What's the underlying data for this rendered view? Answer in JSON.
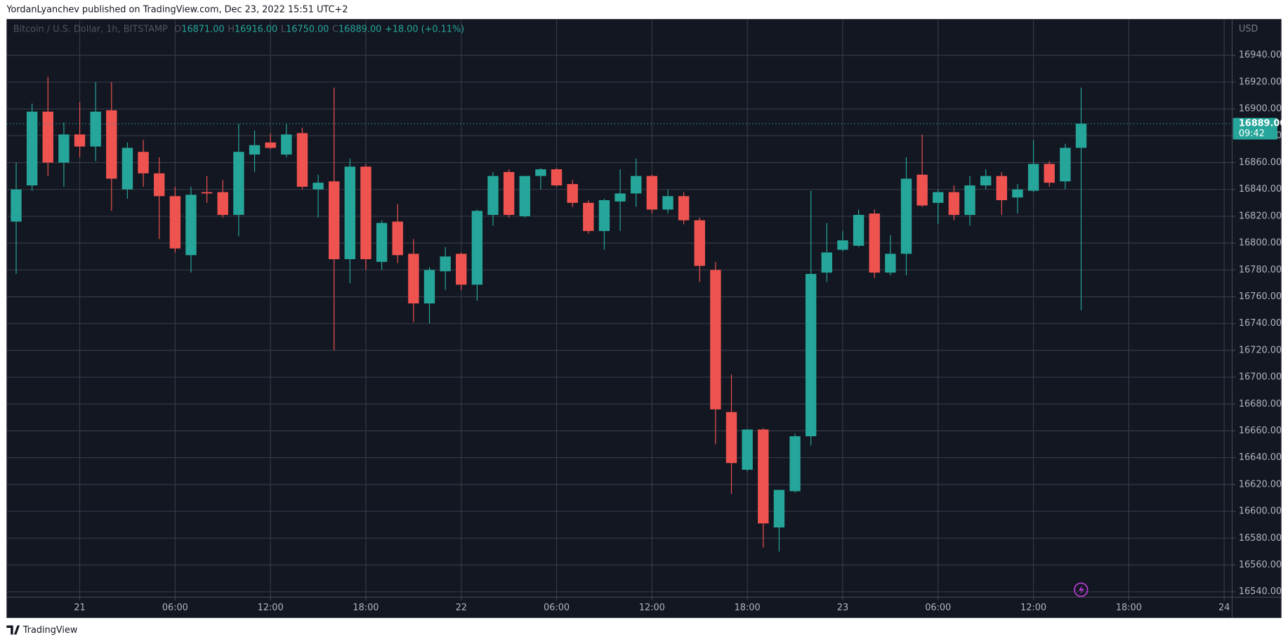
{
  "header": "YordanLyanchev published on TradingView.com, Dec 23, 2022 15:51 UTC+2",
  "footer": "TradingView",
  "chart_data": {
    "type": "candlestick",
    "currency": "USD",
    "up_color": "#26a69a",
    "down_color": "#ef5350",
    "grid": true,
    "legend": {
      "symbol": "Bitcoin / U.S. Dollar, 1h, BITSTAMP",
      "fields": [
        "O",
        "H",
        "L",
        "C"
      ],
      "value_labels": [
        "16871.00",
        "16916.00",
        "16750.00",
        "16889.00"
      ],
      "change": "+18.00 (+0.11%)"
    },
    "last_price": {
      "value": 16889,
      "label": "16889.00",
      "countdown": "09:42"
    },
    "xlim": [
      -0.5,
      76.5
    ],
    "xticks": [
      {
        "value": 4,
        "label": "21"
      },
      {
        "value": 10,
        "label": "06:00"
      },
      {
        "value": 16,
        "label": "12:00"
      },
      {
        "value": 22,
        "label": "18:00"
      },
      {
        "value": 28,
        "label": "22"
      },
      {
        "value": 34,
        "label": "06:00"
      },
      {
        "value": 40,
        "label": "12:00"
      },
      {
        "value": 46,
        "label": "18:00"
      },
      {
        "value": 52,
        "label": "23"
      },
      {
        "value": 58,
        "label": "06:00"
      },
      {
        "value": 64,
        "label": "12:00"
      },
      {
        "value": 70,
        "label": "18:00"
      },
      {
        "value": 76,
        "label": "24"
      }
    ],
    "ylim": [
      16536,
      16967
    ],
    "yticks": [
      {
        "value": 16540,
        "label": "16540.00"
      },
      {
        "value": 16560,
        "label": "16560.00"
      },
      {
        "value": 16580,
        "label": "16580.00"
      },
      {
        "value": 16600,
        "label": "16600.00"
      },
      {
        "value": 16620,
        "label": "16620.00"
      },
      {
        "value": 16640,
        "label": "16640.00"
      },
      {
        "value": 16660,
        "label": "16660.00"
      },
      {
        "value": 16680,
        "label": "16680.00"
      },
      {
        "value": 16700,
        "label": "16700.00"
      },
      {
        "value": 16720,
        "label": "16720.00"
      },
      {
        "value": 16740,
        "label": "16740.00"
      },
      {
        "value": 16760,
        "label": "16760.00"
      },
      {
        "value": 16780,
        "label": "16780.00"
      },
      {
        "value": 16800,
        "label": "16800.00"
      },
      {
        "value": 16820,
        "label": "16820.00"
      },
      {
        "value": 16840,
        "label": "16840.00"
      },
      {
        "value": 16860,
        "label": "16860.00"
      },
      {
        "value": 16880,
        "label": "16880.00"
      },
      {
        "value": 16900,
        "label": "16900.00"
      },
      {
        "value": 16920,
        "label": "16920.00"
      },
      {
        "value": 16940,
        "label": "16940.00"
      }
    ],
    "open": [
      16816,
      16843,
      16898,
      16860,
      16881,
      16872,
      16899,
      16840,
      16868,
      16852,
      16835,
      16791,
      16838,
      16838,
      16821,
      16866,
      16875,
      16866,
      16882,
      16840,
      16846,
      16788,
      16857,
      16786,
      16816,
      16792,
      16755,
      16779,
      16792,
      16769,
      16821,
      16853,
      16820,
      16850,
      16855,
      16844,
      16830,
      16809,
      16831,
      16837,
      16850,
      16825,
      16835,
      16817,
      16780,
      16674,
      16631,
      16661,
      16588,
      16615,
      16656,
      16778,
      16795,
      16798,
      16822,
      16778,
      16792,
      16851,
      16830,
      16838,
      16821,
      16843,
      16850,
      16834,
      16839,
      16859,
      16846,
      16871
    ],
    "high": [
      16860,
      16904,
      16924,
      16890,
      16905,
      16920,
      16920,
      16875,
      16877,
      16864,
      16842,
      16842,
      16850,
      16847,
      16889,
      16884,
      16882,
      16889,
      16886,
      16851,
      16916,
      16863,
      16859,
      16817,
      16829,
      16803,
      16782,
      16797,
      16793,
      16825,
      16853,
      16855,
      16850,
      16856,
      16856,
      16847,
      16832,
      16833,
      16855,
      16863,
      16851,
      16840,
      16838,
      16819,
      16786,
      16702,
      16661,
      16662,
      16616,
      16658,
      16839,
      16815,
      16809,
      16825,
      16825,
      16806,
      16864,
      16881,
      16840,
      16843,
      16850,
      16855,
      16853,
      16844,
      16877,
      16861,
      16874,
      16916
    ],
    "low": [
      16777,
      16839,
      16850,
      16842,
      16864,
      16861,
      16824,
      16833,
      16842,
      16803,
      16793,
      16778,
      16830,
      16819,
      16805,
      16853,
      16870,
      16864,
      16840,
      16819,
      16720,
      16770,
      16780,
      16780,
      16785,
      16741,
      16740,
      16765,
      16765,
      16757,
      16813,
      16819,
      16819,
      16840,
      16842,
      16827,
      16807,
      16795,
      16809,
      16827,
      16822,
      16822,
      16814,
      16771,
      16650,
      16613,
      16630,
      16573,
      16570,
      16614,
      16649,
      16771,
      16794,
      16797,
      16774,
      16776,
      16776,
      16827,
      16814,
      16817,
      16813,
      16840,
      16821,
      16822,
      16838,
      16842,
      16840,
      16750
    ],
    "close": [
      16840,
      16898,
      16860,
      16881,
      16872,
      16898,
      16848,
      16871,
      16852,
      16835,
      16796,
      16836,
      16837,
      16821,
      16868,
      16873,
      16871,
      16881,
      16842,
      16845,
      16788,
      16857,
      16788,
      16815,
      16791,
      16755,
      16780,
      16790,
      16769,
      16824,
      16850,
      16821,
      16850,
      16855,
      16843,
      16830,
      16809,
      16832,
      16837,
      16850,
      16825,
      16835,
      16817,
      16783,
      16676,
      16636,
      16661,
      16591,
      16616,
      16656,
      16777,
      16793,
      16802,
      16821,
      16778,
      16792,
      16848,
      16828,
      16838,
      16821,
      16843,
      16850,
      16832,
      16840,
      16859,
      16845,
      16871,
      16889
    ]
  }
}
